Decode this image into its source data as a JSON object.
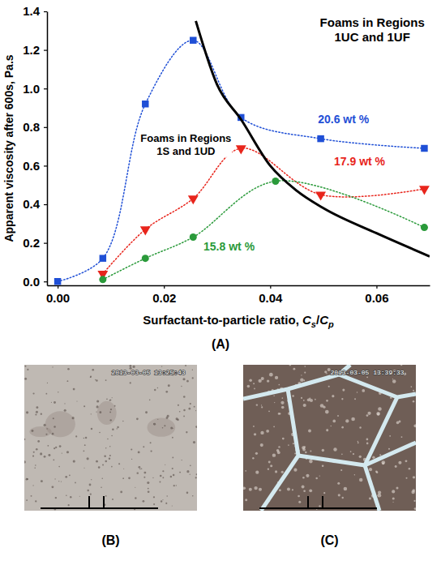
{
  "chart_data": {
    "type": "scatter",
    "panel_label": "(A)",
    "x_label": "Surfactant-to-particle ratio, Cs/Cp",
    "y_label": "Apparent viscosity after 600s, Pa.s",
    "xlim": [
      -0.002,
      0.07
    ],
    "xticks": [
      {
        "value": 0,
        "label": "0.00"
      },
      0.02,
      0.04,
      0.06
    ],
    "ylim": [
      -0.02,
      1.4
    ],
    "yticks": [
      {
        "value": 0,
        "label": "0.0"
      },
      0.2,
      0.4,
      0.6,
      0.8,
      {
        "value": 1,
        "label": "1.0"
      },
      1.2,
      1.4
    ],
    "annotations": [
      {
        "text": [
          "Foams in Regions",
          "1UC and 1UF"
        ]
      },
      {
        "text": [
          "Foams in Regions",
          "1S and 1UD"
        ]
      }
    ],
    "series": [
      {
        "name": "20.6 wt %",
        "color": "#1f4fd6",
        "marker": "square",
        "line_style": "dotted",
        "x": [
          0,
          0.0085,
          0.0165,
          0.0255,
          0.0345,
          0.0495,
          0.069
        ],
        "values": [
          0.0,
          0.12,
          0.92,
          1.25,
          0.85,
          0.74,
          0.69
        ]
      },
      {
        "name": "17.9 wt %",
        "color": "#e8251c",
        "marker": "triangle-down",
        "line_style": "dotted",
        "x": [
          0.0085,
          0.0165,
          0.0255,
          0.0345,
          0.0495,
          0.069
        ],
        "values": [
          0.04,
          0.27,
          0.43,
          0.69,
          0.45,
          0.48
        ]
      },
      {
        "name": "15.8 wt %",
        "color": "#2a9a3a",
        "marker": "circle",
        "line_style": "dotted",
        "x": [
          0.0085,
          0.0165,
          0.0255,
          0.041,
          0.069
        ],
        "values": [
          0.01,
          0.12,
          0.23,
          0.52,
          0.28
        ]
      },
      {
        "type": "line",
        "color": "#000000",
        "marker": "none",
        "line_style": "solid",
        "x": [
          0.026,
          0.03,
          0.0345,
          0.04,
          0.045,
          0.05,
          0.06,
          0.07
        ],
        "values": [
          1.35,
          1.02,
          0.84,
          0.6,
          0.47,
          0.38,
          0.25,
          0.13
        ]
      }
    ]
  },
  "photos": [
    {
      "label": "(B)",
      "timestamp": "2013-03-05 13:25:43"
    },
    {
      "label": "(C)",
      "timestamp": "2013-03-05 13:39:33"
    }
  ]
}
